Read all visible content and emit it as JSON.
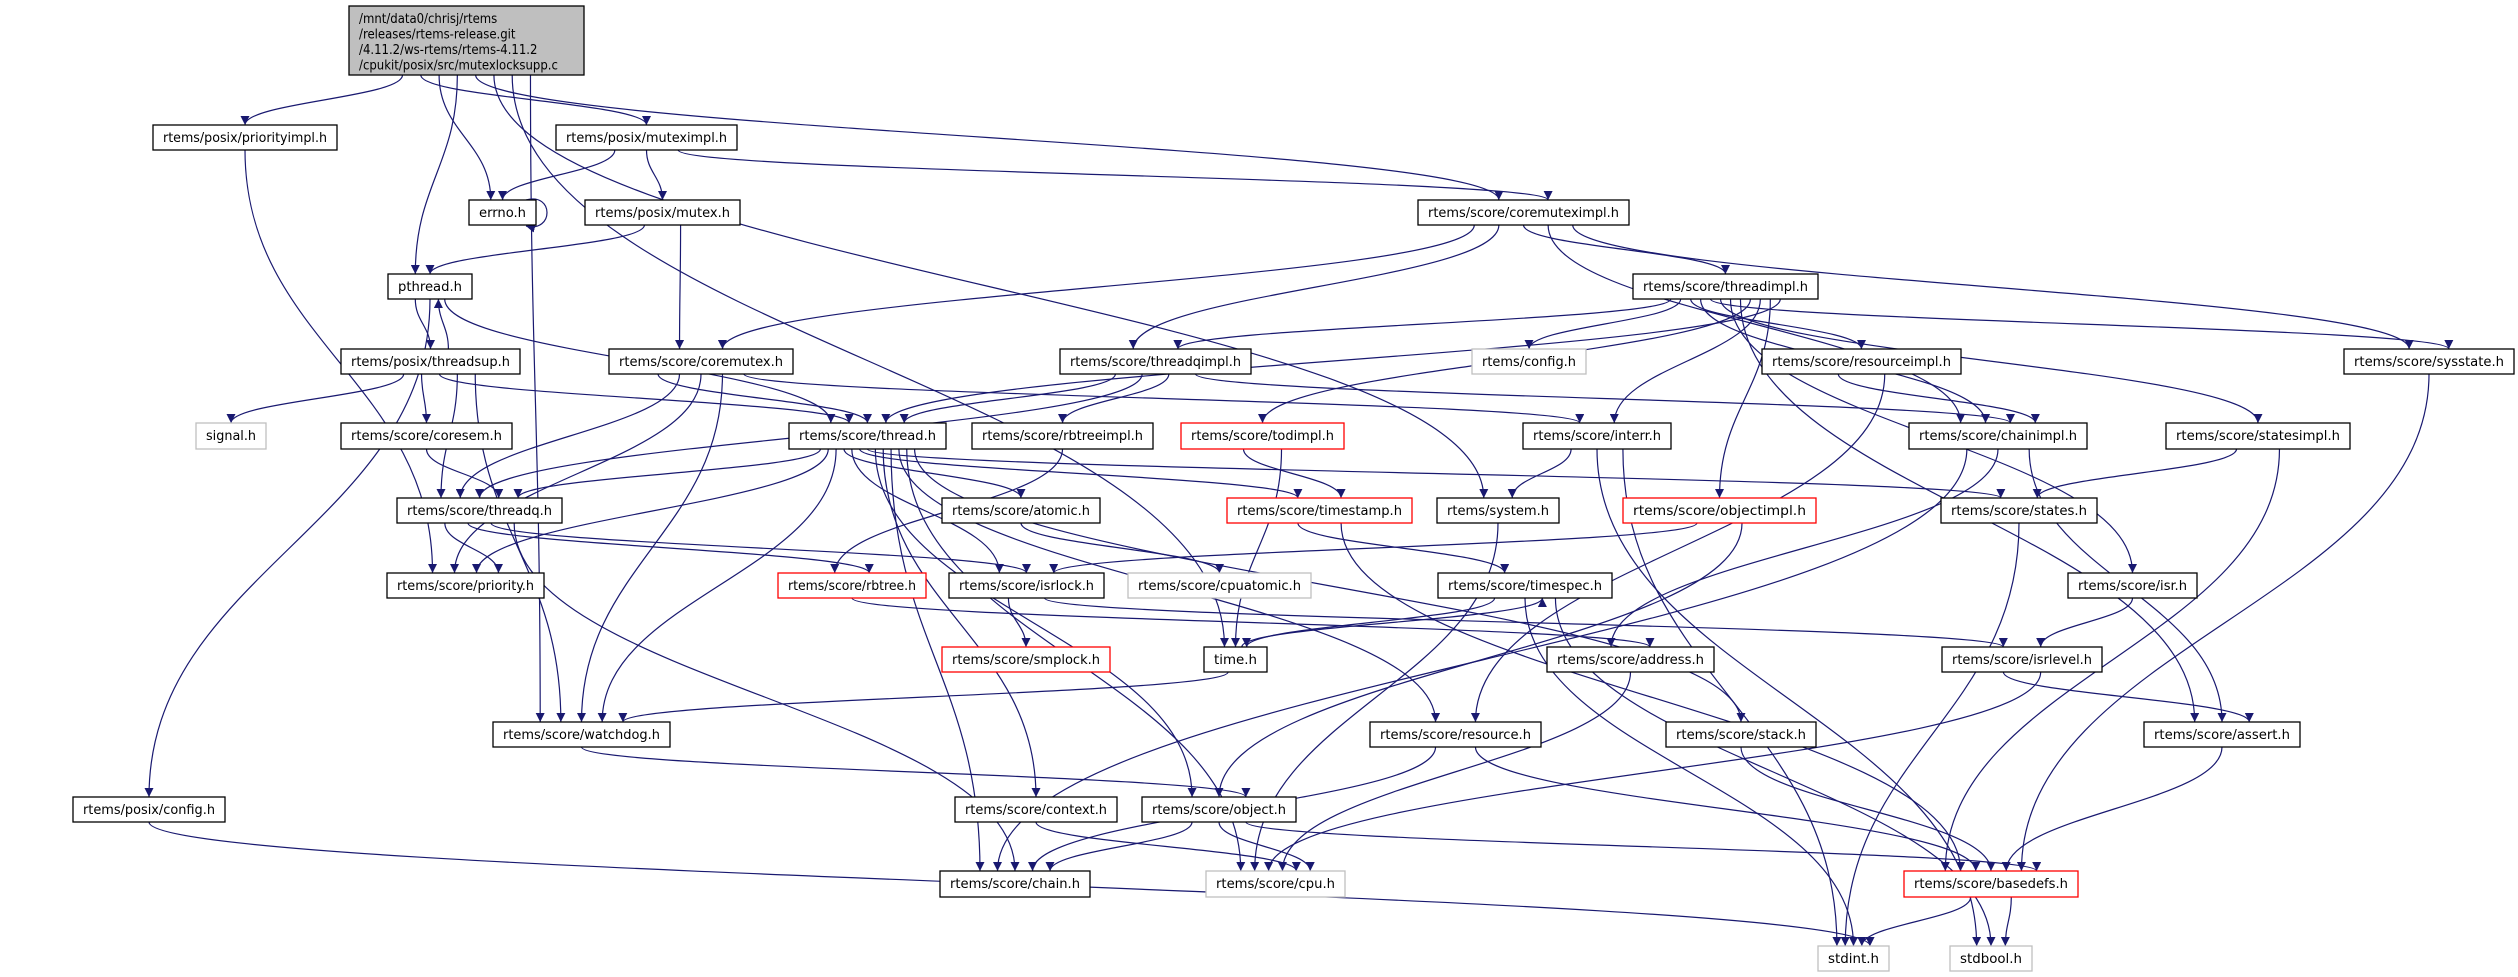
{
  "graph": {
    "edge_color": "#191970",
    "root": {
      "id": "root",
      "lines": [
        "/mnt/data0/chrisj/rtems",
        "/releases/rtems-release.git",
        "/4.11.2/ws-rtems/rtems-4.11.2",
        "/cpukit/posix/src/mutexlocksupp.c"
      ],
      "fill": "#bfbfbf"
    },
    "nodes": [
      {
        "id": "priorityimpl",
        "label": "rtems/posix/priorityimpl.h",
        "kind": "normal"
      },
      {
        "id": "muteximpl",
        "label": "rtems/posix/muteximpl.h",
        "kind": "normal"
      },
      {
        "id": "errno",
        "label": "errno.h",
        "kind": "normal"
      },
      {
        "id": "pmutex",
        "label": "rtems/posix/mutex.h",
        "kind": "normal"
      },
      {
        "id": "coremuteximpl",
        "label": "rtems/score/coremuteximpl.h",
        "kind": "normal"
      },
      {
        "id": "pthread",
        "label": "pthread.h",
        "kind": "normal"
      },
      {
        "id": "threadimpl",
        "label": "rtems/score/threadimpl.h",
        "kind": "normal"
      },
      {
        "id": "threadsup",
        "label": "rtems/posix/threadsup.h",
        "kind": "normal"
      },
      {
        "id": "coremutex",
        "label": "rtems/score/coremutex.h",
        "kind": "normal"
      },
      {
        "id": "threadqimpl",
        "label": "rtems/score/threadqimpl.h",
        "kind": "normal"
      },
      {
        "id": "config",
        "label": "rtems/config.h",
        "kind": "gray"
      },
      {
        "id": "resourceimpl",
        "label": "rtems/score/resourceimpl.h",
        "kind": "normal"
      },
      {
        "id": "sysstate",
        "label": "rtems/score/sysstate.h",
        "kind": "normal"
      },
      {
        "id": "signal",
        "label": "signal.h",
        "kind": "gray"
      },
      {
        "id": "coresem",
        "label": "rtems/score/coresem.h",
        "kind": "normal"
      },
      {
        "id": "thread",
        "label": "rtems/score/thread.h",
        "kind": "normal"
      },
      {
        "id": "rbtreeimpl",
        "label": "rtems/score/rbtreeimpl.h",
        "kind": "normal"
      },
      {
        "id": "todimpl",
        "label": "rtems/score/todimpl.h",
        "kind": "red"
      },
      {
        "id": "interr",
        "label": "rtems/score/interr.h",
        "kind": "normal"
      },
      {
        "id": "chainimpl",
        "label": "rtems/score/chainimpl.h",
        "kind": "normal"
      },
      {
        "id": "statesimpl",
        "label": "rtems/score/statesimpl.h",
        "kind": "normal"
      },
      {
        "id": "threadq",
        "label": "rtems/score/threadq.h",
        "kind": "normal"
      },
      {
        "id": "atomic",
        "label": "rtems/score/atomic.h",
        "kind": "normal"
      },
      {
        "id": "timestamp",
        "label": "rtems/score/timestamp.h",
        "kind": "red"
      },
      {
        "id": "system",
        "label": "rtems/system.h",
        "kind": "normal"
      },
      {
        "id": "objectimpl",
        "label": "rtems/score/objectimpl.h",
        "kind": "red"
      },
      {
        "id": "states",
        "label": "rtems/score/states.h",
        "kind": "normal"
      },
      {
        "id": "priority",
        "label": "rtems/score/priority.h",
        "kind": "normal"
      },
      {
        "id": "rbtree",
        "label": "rtems/score/rbtree.h",
        "kind": "red"
      },
      {
        "id": "isrlock",
        "label": "rtems/score/isrlock.h",
        "kind": "normal"
      },
      {
        "id": "cpuatomic",
        "label": "rtems/score/cpuatomic.h",
        "kind": "gray"
      },
      {
        "id": "timespec",
        "label": "rtems/score/timespec.h",
        "kind": "normal"
      },
      {
        "id": "isr",
        "label": "rtems/score/isr.h",
        "kind": "normal"
      },
      {
        "id": "smplock",
        "label": "rtems/score/smplock.h",
        "kind": "red"
      },
      {
        "id": "time",
        "label": "time.h",
        "kind": "normal"
      },
      {
        "id": "address",
        "label": "rtems/score/address.h",
        "kind": "normal"
      },
      {
        "id": "isrlevel",
        "label": "rtems/score/isrlevel.h",
        "kind": "normal"
      },
      {
        "id": "watchdog",
        "label": "rtems/score/watchdog.h",
        "kind": "normal"
      },
      {
        "id": "resource",
        "label": "rtems/score/resource.h",
        "kind": "normal"
      },
      {
        "id": "stack",
        "label": "rtems/score/stack.h",
        "kind": "normal"
      },
      {
        "id": "assert",
        "label": "rtems/score/assert.h",
        "kind": "normal"
      },
      {
        "id": "pconfig",
        "label": "rtems/posix/config.h",
        "kind": "normal"
      },
      {
        "id": "context",
        "label": "rtems/score/context.h",
        "kind": "normal"
      },
      {
        "id": "object",
        "label": "rtems/score/object.h",
        "kind": "normal"
      },
      {
        "id": "chain",
        "label": "rtems/score/chain.h",
        "kind": "normal"
      },
      {
        "id": "cpu",
        "label": "rtems/score/cpu.h",
        "kind": "gray"
      },
      {
        "id": "basedefs",
        "label": "rtems/score/basedefs.h",
        "kind": "red"
      },
      {
        "id": "stdint",
        "label": "stdint.h",
        "kind": "gray"
      },
      {
        "id": "stdbool",
        "label": "stdbool.h",
        "kind": "gray"
      }
    ],
    "edges": [
      [
        "root",
        "priorityimpl"
      ],
      [
        "root",
        "muteximpl"
      ],
      [
        "root",
        "errno"
      ],
      [
        "root",
        "pthread"
      ],
      [
        "root",
        "coremuteximpl"
      ],
      [
        "root",
        "system"
      ],
      [
        "root",
        "time"
      ],
      [
        "root",
        "watchdog"
      ],
      [
        "priorityimpl",
        "priority"
      ],
      [
        "muteximpl",
        "errno"
      ],
      [
        "muteximpl",
        "pmutex"
      ],
      [
        "muteximpl",
        "coremuteximpl"
      ],
      [
        "errno",
        "errno"
      ],
      [
        "pmutex",
        "pthread"
      ],
      [
        "pmutex",
        "coremutex"
      ],
      [
        "pthread",
        "threadsup"
      ],
      [
        "pthread",
        "pconfig"
      ],
      [
        "pthread",
        "thread"
      ],
      [
        "threadsup",
        "pthread"
      ],
      [
        "threadsup",
        "signal"
      ],
      [
        "threadsup",
        "coresem"
      ],
      [
        "threadsup",
        "thread"
      ],
      [
        "threadsup",
        "threadq"
      ],
      [
        "threadsup",
        "watchdog"
      ],
      [
        "coremutex",
        "thread"
      ],
      [
        "coremutex",
        "threadq"
      ],
      [
        "coremutex",
        "priority"
      ],
      [
        "coremutex",
        "watchdog"
      ],
      [
        "coremutex",
        "interr"
      ],
      [
        "coremuteximpl",
        "coremutex"
      ],
      [
        "coremuteximpl",
        "threadqimpl"
      ],
      [
        "coremuteximpl",
        "threadimpl"
      ],
      [
        "coremuteximpl",
        "chainimpl"
      ],
      [
        "coremuteximpl",
        "sysstate"
      ],
      [
        "threadimpl",
        "threadqimpl"
      ],
      [
        "threadimpl",
        "config"
      ],
      [
        "threadimpl",
        "resourceimpl"
      ],
      [
        "threadimpl",
        "chainimpl"
      ],
      [
        "threadimpl",
        "sysstate"
      ],
      [
        "threadimpl",
        "statesimpl"
      ],
      [
        "threadimpl",
        "isr"
      ],
      [
        "threadimpl",
        "assert"
      ],
      [
        "threadimpl",
        "todimpl"
      ],
      [
        "threadimpl",
        "interr"
      ],
      [
        "threadimpl",
        "objectimpl"
      ],
      [
        "threadimpl",
        "thread"
      ],
      [
        "threadqimpl",
        "thread"
      ],
      [
        "threadqimpl",
        "threadq"
      ],
      [
        "threadqimpl",
        "rbtreeimpl"
      ],
      [
        "threadqimpl",
        "chainimpl"
      ],
      [
        "coresem",
        "threadq"
      ],
      [
        "thread",
        "threadq"
      ],
      [
        "thread",
        "priority"
      ],
      [
        "thread",
        "watchdog"
      ],
      [
        "thread",
        "atomic"
      ],
      [
        "thread",
        "isrlock"
      ],
      [
        "thread",
        "timestamp"
      ],
      [
        "thread",
        "states"
      ],
      [
        "thread",
        "object"
      ],
      [
        "thread",
        "context"
      ],
      [
        "thread",
        "chain"
      ],
      [
        "thread",
        "resource"
      ],
      [
        "thread",
        "cpu"
      ],
      [
        "thread",
        "stack"
      ],
      [
        "rbtreeimpl",
        "rbtree"
      ],
      [
        "todimpl",
        "timestamp"
      ],
      [
        "todimpl",
        "time"
      ],
      [
        "interr",
        "system"
      ],
      [
        "interr",
        "stdbool"
      ],
      [
        "interr",
        "stdint"
      ],
      [
        "resourceimpl",
        "chainimpl"
      ],
      [
        "resourceimpl",
        "resource"
      ],
      [
        "chainimpl",
        "chain"
      ],
      [
        "chainimpl",
        "address"
      ],
      [
        "chainimpl",
        "assert"
      ],
      [
        "statesimpl",
        "states"
      ],
      [
        "statesimpl",
        "basedefs"
      ],
      [
        "threadq",
        "priority"
      ],
      [
        "threadq",
        "rbtree"
      ],
      [
        "threadq",
        "isrlock"
      ],
      [
        "threadq",
        "chain"
      ],
      [
        "atomic",
        "cpuatomic"
      ],
      [
        "timestamp",
        "timespec"
      ],
      [
        "timestamp",
        "basedefs"
      ],
      [
        "system",
        "cpu"
      ],
      [
        "objectimpl",
        "isrlock"
      ],
      [
        "objectimpl",
        "object"
      ],
      [
        "states",
        "stdint"
      ],
      [
        "isrlock",
        "smplock"
      ],
      [
        "isrlock",
        "isrlevel"
      ],
      [
        "rbtree",
        "address"
      ],
      [
        "timespec",
        "time"
      ],
      [
        "timespec",
        "stdint"
      ],
      [
        "timespec",
        "stdbool"
      ],
      [
        "isr",
        "isrlevel"
      ],
      [
        "time",
        "watchdog"
      ],
      [
        "time",
        "timespec"
      ],
      [
        "isrlevel",
        "assert"
      ],
      [
        "isrlevel",
        "cpu"
      ],
      [
        "address",
        "cpu"
      ],
      [
        "watchdog",
        "object"
      ],
      [
        "resource",
        "chain"
      ],
      [
        "resource",
        "basedefs"
      ],
      [
        "stack",
        "basedefs"
      ],
      [
        "assert",
        "basedefs"
      ],
      [
        "sysstate",
        "basedefs"
      ],
      [
        "context",
        "cpu"
      ],
      [
        "object",
        "chain"
      ],
      [
        "object",
        "cpu"
      ],
      [
        "object",
        "basedefs"
      ],
      [
        "basedefs",
        "stdint"
      ],
      [
        "basedefs",
        "stdbool"
      ],
      [
        "pconfig",
        "stdint"
      ]
    ]
  }
}
